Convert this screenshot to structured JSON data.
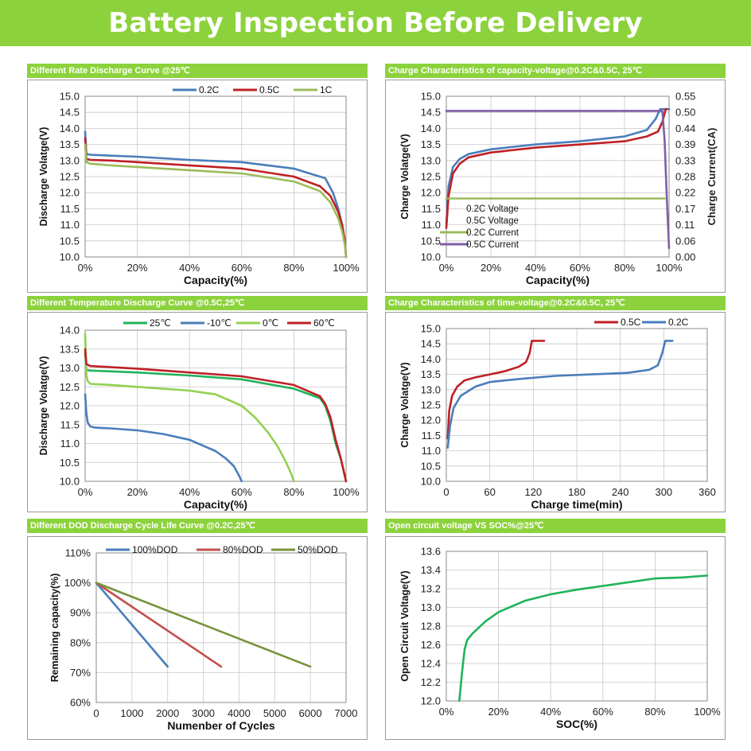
{
  "page_title": "Battery Inspection Before Delivery",
  "colors": {
    "banner": "#8cd23c",
    "blue": "#4a7ebb",
    "red": "#be2025",
    "green": "#9bbb59",
    "purple": "#7f5fa8",
    "bright_green": "#1fb35a",
    "olive": "#77933c"
  },
  "chart_data": [
    {
      "id": "rate",
      "type": "line",
      "title": "Different Rate Discharge Curve @25℃",
      "xlabel": "Capacity(%)",
      "ylabel": "Discharge Volatge(V)",
      "xlim": [
        0,
        100
      ],
      "ylim": [
        10.0,
        15.0
      ],
      "xticks": [
        "0%",
        "20%",
        "40%",
        "60%",
        "80%",
        "100%"
      ],
      "yticks": [
        "10.0",
        "10.5",
        "11.0",
        "11.5",
        "12.0",
        "12.5",
        "13.0",
        "13.5",
        "14.0",
        "14.5",
        "15.0"
      ],
      "grid": true,
      "legend": "top-right",
      "series": [
        {
          "name": "0.2C",
          "color": "#4a7ebb",
          "x": [
            0,
            0.5,
            2,
            10,
            20,
            40,
            60,
            80,
            88,
            92,
            95,
            97,
            98.5,
            99.5,
            100
          ],
          "y": [
            13.9,
            13.2,
            13.18,
            13.15,
            13.12,
            13.02,
            12.95,
            12.75,
            12.55,
            12.45,
            12.0,
            11.5,
            11.0,
            10.5,
            10.0
          ]
        },
        {
          "name": "0.5C",
          "color": "#be2025",
          "x": [
            0,
            0.5,
            2,
            10,
            20,
            40,
            60,
            80,
            90,
            94,
            97,
            98.5,
            99.5,
            100
          ],
          "y": [
            13.7,
            13.05,
            13.02,
            13.0,
            12.95,
            12.85,
            12.75,
            12.5,
            12.2,
            11.9,
            11.4,
            11.0,
            10.5,
            10.0
          ]
        },
        {
          "name": "1C",
          "color": "#9bbb59",
          "x": [
            0,
            0.5,
            2,
            10,
            20,
            40,
            60,
            80,
            90,
            94,
            97,
            98.5,
            99.5,
            100
          ],
          "y": [
            13.5,
            12.95,
            12.9,
            12.85,
            12.8,
            12.7,
            12.6,
            12.35,
            12.05,
            11.7,
            11.2,
            10.8,
            10.4,
            10.0
          ]
        }
      ]
    },
    {
      "id": "cap_charge",
      "type": "line",
      "title": "Charge  Characteristics of capacity-voltage@0.2C&0.5C, 25℃",
      "xlabel": "Capacity(%)",
      "ylabel": "Charge Volatge(V)",
      "y2label": "Charge Current(CA)",
      "xlim": [
        0,
        100
      ],
      "ylim": [
        10.0,
        15.0
      ],
      "y2lim": [
        0,
        0.55
      ],
      "xticks": [
        "0%",
        "20%",
        "40%",
        "60%",
        "80%",
        "100%"
      ],
      "yticks": [
        "10.0",
        "10.5",
        "11.0",
        "11.5",
        "12.0",
        "12.5",
        "13.0",
        "13.5",
        "14.0",
        "14.5",
        "15.0"
      ],
      "y2ticks": [
        "0.00",
        "0.06",
        "0.11",
        "0.17",
        "0.22",
        "0.28",
        "0.33",
        "0.39",
        "0.44",
        "0.50",
        "0.55"
      ],
      "grid": true,
      "legend": "center",
      "series": [
        {
          "name": "0.2C Voltage",
          "color": "#4a7ebb",
          "axis": "left",
          "x": [
            0,
            1,
            3,
            6,
            10,
            20,
            40,
            60,
            80,
            90,
            94,
            96,
            97,
            100
          ],
          "y": [
            11.0,
            12.2,
            12.8,
            13.05,
            13.2,
            13.35,
            13.5,
            13.6,
            13.75,
            13.95,
            14.3,
            14.6,
            14.6,
            14.6
          ]
        },
        {
          "name": "0.5C Voltage",
          "color": "#be2025",
          "axis": "left",
          "x": [
            0,
            1,
            3,
            6,
            10,
            20,
            40,
            60,
            80,
            90,
            95,
            97,
            98.5,
            99
          ],
          "y": [
            10.9,
            11.9,
            12.6,
            12.9,
            13.1,
            13.25,
            13.4,
            13.5,
            13.6,
            13.75,
            13.9,
            14.2,
            14.6,
            14.6
          ]
        },
        {
          "name": "0.2C Current",
          "color": "#9bbb59",
          "axis": "right",
          "x": [
            0,
            98
          ],
          "y": [
            0.2,
            0.2
          ]
        },
        {
          "name": "0.5C Current",
          "color": "#7f5fa8",
          "axis": "right",
          "x": [
            0,
            96,
            97,
            98,
            99,
            100
          ],
          "y": [
            0.5,
            0.5,
            0.5,
            0.4,
            0.2,
            0.03
          ]
        }
      ]
    },
    {
      "id": "temp",
      "type": "line",
      "title": "Different Temperature Discharge Curve @0.5C,25℃",
      "xlabel": "Capacity(%)",
      "ylabel": "Discharge Volatge(V)",
      "xlim": [
        0,
        100
      ],
      "ylim": [
        10.0,
        14.0
      ],
      "xticks": [
        "0%",
        "20%",
        "40%",
        "60%",
        "80%",
        "100%"
      ],
      "yticks": [
        "10.0",
        "10.5",
        "11.0",
        "11.5",
        "12.0",
        "12.5",
        "13.0",
        "13.5",
        "14.0"
      ],
      "grid": true,
      "legend": "top",
      "series": [
        {
          "name": "25℃",
          "color": "#1fb35a",
          "x": [
            0,
            0.5,
            2,
            20,
            40,
            60,
            80,
            90,
            92,
            94,
            96,
            98,
            99,
            100
          ],
          "y": [
            13.4,
            12.95,
            12.93,
            12.88,
            12.8,
            12.7,
            12.45,
            12.2,
            12.0,
            11.6,
            11.0,
            10.6,
            10.3,
            10.0
          ]
        },
        {
          "name": "-10℃",
          "color": "#4a7ebb",
          "x": [
            0,
            0.5,
            1,
            2,
            4,
            10,
            20,
            30,
            40,
            45,
            50,
            54,
            57,
            59,
            60
          ],
          "y": [
            12.3,
            11.8,
            11.55,
            11.45,
            11.42,
            11.4,
            11.35,
            11.25,
            11.1,
            10.95,
            10.8,
            10.6,
            10.4,
            10.15,
            10.0
          ]
        },
        {
          "name": "0℃",
          "color": "#92d050",
          "x": [
            0,
            0.5,
            1,
            2,
            10,
            20,
            40,
            50,
            60,
            65,
            70,
            74,
            77,
            79,
            80
          ],
          "y": [
            13.9,
            12.8,
            12.65,
            12.58,
            12.55,
            12.5,
            12.4,
            12.3,
            12.0,
            11.7,
            11.3,
            10.9,
            10.5,
            10.2,
            10.0
          ]
        },
        {
          "name": "60℃",
          "color": "#be2025",
          "x": [
            0,
            0.5,
            2,
            20,
            40,
            60,
            80,
            90,
            92,
            94,
            96,
            98,
            99,
            100
          ],
          "y": [
            13.5,
            13.1,
            13.05,
            12.98,
            12.88,
            12.78,
            12.55,
            12.25,
            12.05,
            11.7,
            11.1,
            10.6,
            10.3,
            10.0
          ]
        }
      ]
    },
    {
      "id": "time_charge",
      "type": "line",
      "title": "Charge  Characteristics of time-voltage@0.2C&0.5C, 25℃",
      "xlabel": "Charge time(min)",
      "ylabel": "Charge Volatge(V)",
      "xlim": [
        0,
        360
      ],
      "ylim": [
        10.0,
        15.0
      ],
      "xticks": [
        "0",
        "60",
        "120",
        "180",
        "240",
        "300",
        "360"
      ],
      "yticks": [
        "10.0",
        "10.5",
        "11.0",
        "11.5",
        "12.0",
        "12.5",
        "13.0",
        "13.5",
        "14.0",
        "14.5",
        "15.0"
      ],
      "grid": true,
      "legend": "top-right",
      "series": [
        {
          "name": "0.5C",
          "color": "#be2025",
          "x": [
            2,
            4,
            8,
            15,
            25,
            40,
            60,
            80,
            100,
            110,
            115,
            118,
            120,
            125,
            135
          ],
          "y": [
            11.4,
            12.3,
            12.8,
            13.1,
            13.3,
            13.4,
            13.5,
            13.6,
            13.75,
            13.9,
            14.2,
            14.6,
            14.6,
            14.6,
            14.6
          ]
        },
        {
          "name": "0.2C",
          "color": "#4a7ebb",
          "x": [
            2,
            5,
            10,
            20,
            40,
            60,
            100,
            150,
            200,
            250,
            280,
            292,
            298,
            302,
            305,
            312
          ],
          "y": [
            11.1,
            11.8,
            12.4,
            12.8,
            13.1,
            13.25,
            13.35,
            13.45,
            13.5,
            13.55,
            13.65,
            13.8,
            14.2,
            14.6,
            14.6,
            14.6
          ]
        }
      ]
    },
    {
      "id": "dod",
      "type": "line",
      "title": "Different DOD Discharge Cycle Life Curve @0.2C,25℃",
      "xlabel": "Numenber of Cycles",
      "ylabel": "Remaining capacity(%)",
      "xlim": [
        0,
        7000
      ],
      "ylim": [
        60,
        110
      ],
      "xticks": [
        "0",
        "1000",
        "2000",
        "3000",
        "4000",
        "5000",
        "6000",
        "7000"
      ],
      "yticks": [
        "60%",
        "70%",
        "80%",
        "90%",
        "100%",
        "110%"
      ],
      "grid": true,
      "legend": "top",
      "series": [
        {
          "name": "100%DOD",
          "color": "#4a7ebb",
          "x": [
            0,
            2000
          ],
          "y": [
            100,
            72
          ]
        },
        {
          "name": "80%DOD",
          "color": "#c0504d",
          "x": [
            0,
            3500
          ],
          "y": [
            100,
            72
          ]
        },
        {
          "name": "50%DOD",
          "color": "#77933c",
          "x": [
            0,
            6000
          ],
          "y": [
            100,
            72
          ]
        }
      ]
    },
    {
      "id": "ocv",
      "type": "line",
      "title": "Open circuit voltage VS SOC%@25℃",
      "xlabel": "SOC(%)",
      "ylabel": "Open Circuit Voltage(V)",
      "xlim": [
        0,
        100
      ],
      "ylim": [
        12.0,
        13.6
      ],
      "xticks": [
        "0%",
        "20%",
        "40%",
        "60%",
        "80%",
        "100%"
      ],
      "yticks": [
        "12.0",
        "12.2",
        "12.4",
        "12.6",
        "12.8",
        "13.0",
        "13.2",
        "13.4",
        "13.6"
      ],
      "grid": true,
      "legend": "none",
      "series": [
        {
          "name": "",
          "color": "#1fb35a",
          "x": [
            5,
            6,
            7,
            8,
            10,
            15,
            20,
            30,
            40,
            50,
            60,
            70,
            80,
            90,
            100
          ],
          "y": [
            12.0,
            12.3,
            12.55,
            12.65,
            12.72,
            12.85,
            12.95,
            13.07,
            13.14,
            13.19,
            13.23,
            13.27,
            13.31,
            13.32,
            13.34
          ]
        }
      ]
    }
  ]
}
